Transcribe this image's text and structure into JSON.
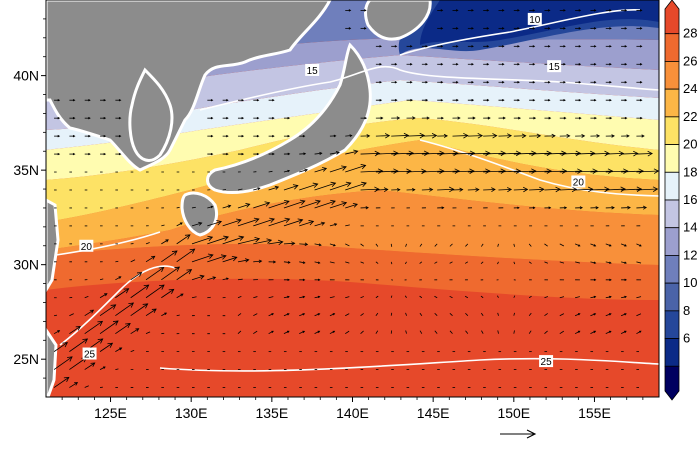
{
  "map": {
    "lon_range": [
      121,
      159
    ],
    "lat_range": [
      23,
      44
    ],
    "x_ticks": [
      {
        "lon": 125,
        "label": "125E"
      },
      {
        "lon": 130,
        "label": "130E"
      },
      {
        "lon": 135,
        "label": "135E"
      },
      {
        "lon": 140,
        "label": "140E"
      },
      {
        "lon": 145,
        "label": "145E"
      },
      {
        "lon": 150,
        "label": "150E"
      },
      {
        "lon": 155,
        "label": "155E"
      }
    ],
    "y_ticks": [
      {
        "lat": 25,
        "label": "25N"
      },
      {
        "lat": 30,
        "label": "30N"
      },
      {
        "lat": 35,
        "label": "35N"
      },
      {
        "lat": 40,
        "label": "40N"
      }
    ],
    "contour_labels": [
      {
        "text": "10",
        "lon": 151.3,
        "lat": 43.0
      },
      {
        "text": "15",
        "lon": 137.5,
        "lat": 40.3
      },
      {
        "text": "15",
        "lon": 152.5,
        "lat": 40.5
      },
      {
        "text": "20",
        "lon": 123.5,
        "lat": 31.0
      },
      {
        "text": "20",
        "lon": 154.0,
        "lat": 34.4
      },
      {
        "text": "25",
        "lon": 123.7,
        "lat": 25.3
      },
      {
        "text": "25",
        "lon": 152.0,
        "lat": 24.9
      }
    ],
    "land_color": "#8c8c8c"
  },
  "colorbar": {
    "levels": [
      "6",
      "8",
      "10",
      "12",
      "14",
      "16",
      "18",
      "20",
      "22",
      "24",
      "26",
      "28"
    ],
    "colors": [
      "#000060",
      "#0b2a87",
      "#25479a",
      "#4a63a8",
      "#6f7fbc",
      "#9c9fce",
      "#c3c5e3",
      "#e6f2fa",
      "#fffcb0",
      "#fde265",
      "#fcb646",
      "#f8903a",
      "#ef6a2f",
      "#e6492a"
    ]
  },
  "reference_vector": {
    "shown": true
  }
}
